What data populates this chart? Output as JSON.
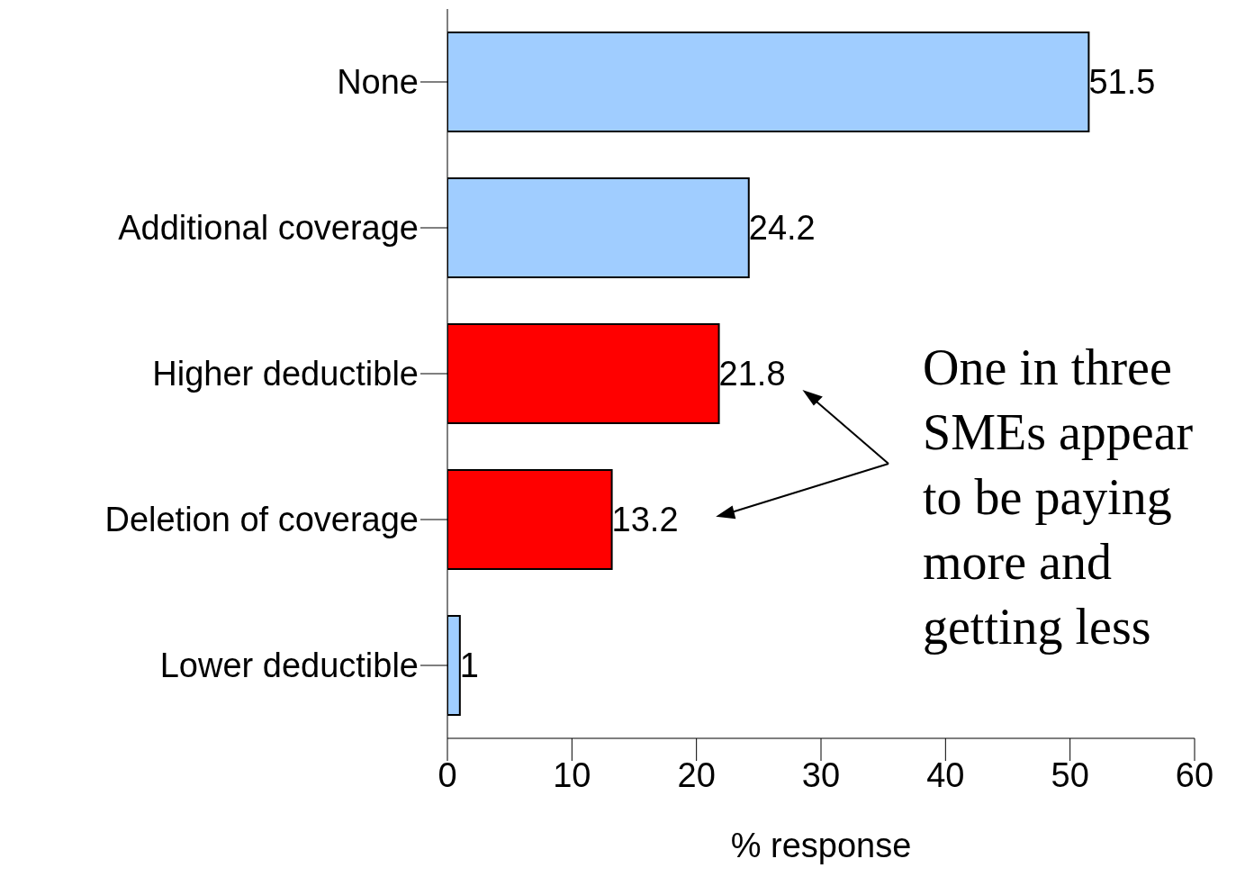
{
  "chart_data": {
    "type": "bar",
    "orientation": "horizontal",
    "categories": [
      "None",
      "Additional coverage",
      "Higher deductible",
      "Deletion of coverage",
      "Lower deductible"
    ],
    "values": [
      51.5,
      24.2,
      21.8,
      13.2,
      1
    ],
    "colors": [
      "#a0cdff",
      "#a0cdff",
      "#ff0000",
      "#ff0000",
      "#a0cdff"
    ],
    "xlim": [
      0,
      60
    ],
    "xticks": [
      0,
      10,
      20,
      30,
      40,
      50,
      60
    ],
    "xlabel": "% response",
    "data_labels": true,
    "grid": false,
    "legend": false,
    "annotations": [
      "One in three SMEs appear to be paying more and getting less"
    ]
  }
}
